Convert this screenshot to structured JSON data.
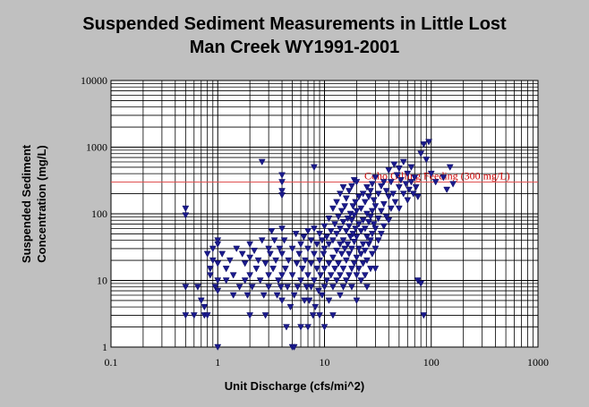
{
  "chart_data": {
    "type": "scatter",
    "title_line1": "Suspended Sediment Measurements in Little Lost",
    "title_line2": "Man Creek WY1991-2001",
    "xlabel": "Unit Discharge (cfs/mi^2)",
    "ylabel_line1": "Suspended Sediment",
    "ylabel_line2": "Concentration (mg/L)",
    "x_scale": "log",
    "y_scale": "log",
    "xlim": [
      0.1,
      1000
    ],
    "ylim": [
      1,
      10000
    ],
    "x_ticks": [
      "0.1",
      "1",
      "10",
      "100",
      "1000"
    ],
    "y_ticks": [
      "1",
      "10",
      "100",
      "1000",
      "10000"
    ],
    "grid": true,
    "marker": "triangle-down",
    "marker_color": "#1a1a8c",
    "threshold": {
      "value": 300,
      "label": "Coho Gilling Feeding (300 mg/L)",
      "color": "#e05050"
    },
    "points": [
      [
        0.5,
        120
      ],
      [
        0.5,
        95
      ],
      [
        0.5,
        8
      ],
      [
        0.5,
        3
      ],
      [
        0.6,
        3
      ],
      [
        0.65,
        8
      ],
      [
        0.7,
        5
      ],
      [
        0.75,
        3
      ],
      [
        0.75,
        4
      ],
      [
        0.8,
        3
      ],
      [
        0.8,
        25
      ],
      [
        0.85,
        12
      ],
      [
        0.85,
        15
      ],
      [
        0.9,
        30
      ],
      [
        0.9,
        20
      ],
      [
        0.95,
        8
      ],
      [
        1,
        40
      ],
      [
        1,
        35
      ],
      [
        1,
        18
      ],
      [
        1,
        10
      ],
      [
        1,
        7
      ],
      [
        1,
        1
      ],
      [
        1.1,
        25
      ],
      [
        1.2,
        15
      ],
      [
        1.2,
        10
      ],
      [
        1.3,
        20
      ],
      [
        1.4,
        6
      ],
      [
        1.4,
        12
      ],
      [
        1.5,
        30
      ],
      [
        1.6,
        8
      ],
      [
        1.7,
        25
      ],
      [
        1.8,
        18
      ],
      [
        1.8,
        10
      ],
      [
        1.9,
        6
      ],
      [
        2,
        35
      ],
      [
        2,
        22
      ],
      [
        2,
        12
      ],
      [
        2,
        3
      ],
      [
        2.1,
        8
      ],
      [
        2.2,
        28
      ],
      [
        2.3,
        15
      ],
      [
        2.4,
        20
      ],
      [
        2.5,
        10
      ],
      [
        2.6,
        40
      ],
      [
        2.6,
        600
      ],
      [
        2.7,
        6
      ],
      [
        2.8,
        3
      ],
      [
        2.8,
        18
      ],
      [
        3,
        30
      ],
      [
        3,
        12
      ],
      [
        3,
        8
      ],
      [
        3.1,
        25
      ],
      [
        3.2,
        55
      ],
      [
        3.3,
        15
      ],
      [
        3.4,
        40
      ],
      [
        3.5,
        20
      ],
      [
        3.6,
        6
      ],
      [
        3.7,
        10
      ],
      [
        3.8,
        30
      ],
      [
        3.9,
        8
      ],
      [
        4,
        380
      ],
      [
        4,
        300
      ],
      [
        4,
        220
      ],
      [
        4,
        190
      ],
      [
        4,
        60
      ],
      [
        4,
        25
      ],
      [
        4,
        12
      ],
      [
        4,
        5
      ],
      [
        4.2,
        40
      ],
      [
        4.3,
        15
      ],
      [
        4.4,
        2
      ],
      [
        4.5,
        8
      ],
      [
        4.6,
        20
      ],
      [
        4.8,
        4
      ],
      [
        5,
        1
      ],
      [
        5,
        30
      ],
      [
        5,
        12
      ],
      [
        5.2,
        1
      ],
      [
        5.2,
        6
      ],
      [
        5.4,
        50
      ],
      [
        5.5,
        18
      ],
      [
        5.6,
        8
      ],
      [
        5.8,
        25
      ],
      [
        6,
        2
      ],
      [
        6,
        35
      ],
      [
        6,
        10
      ],
      [
        6.2,
        15
      ],
      [
        6.4,
        45
      ],
      [
        6.5,
        5
      ],
      [
        6.6,
        20
      ],
      [
        6.8,
        8
      ],
      [
        7,
        55
      ],
      [
        7,
        30
      ],
      [
        7,
        12
      ],
      [
        7,
        2
      ],
      [
        7.2,
        5
      ],
      [
        7.5,
        40
      ],
      [
        7.5,
        18
      ],
      [
        7.5,
        8
      ],
      [
        7.8,
        3
      ],
      [
        8,
        500
      ],
      [
        8,
        60
      ],
      [
        8,
        25
      ],
      [
        8,
        10
      ],
      [
        8.2,
        4
      ],
      [
        8.5,
        35
      ],
      [
        8.5,
        15
      ],
      [
        8.8,
        7
      ],
      [
        9,
        50
      ],
      [
        9,
        20
      ],
      [
        9,
        3
      ],
      [
        9.2,
        12
      ],
      [
        9.5,
        40
      ],
      [
        9.5,
        6
      ],
      [
        9.8,
        25
      ],
      [
        10,
        65
      ],
      [
        10,
        30
      ],
      [
        10,
        15
      ],
      [
        10,
        8
      ],
      [
        10,
        2
      ],
      [
        10.5,
        45
      ],
      [
        10.5,
        10
      ],
      [
        11,
        85
      ],
      [
        11,
        35
      ],
      [
        11,
        18
      ],
      [
        11,
        5
      ],
      [
        11.5,
        55
      ],
      [
        11.5,
        12
      ],
      [
        12,
        120
      ],
      [
        12,
        40
      ],
      [
        12,
        22
      ],
      [
        12,
        8
      ],
      [
        12,
        3
      ],
      [
        12.5,
        70
      ],
      [
        12.5,
        15
      ],
      [
        13,
        150
      ],
      [
        13,
        50
      ],
      [
        13,
        28
      ],
      [
        13,
        10
      ],
      [
        13.5,
        90
      ],
      [
        13.5,
        18
      ],
      [
        14,
        200
      ],
      [
        14,
        60
      ],
      [
        14,
        35
      ],
      [
        14,
        12
      ],
      [
        14,
        6
      ],
      [
        14.5,
        110
      ],
      [
        14.5,
        25
      ],
      [
        15,
        250
      ],
      [
        15,
        75
      ],
      [
        15,
        40
      ],
      [
        15,
        15
      ],
      [
        15,
        8
      ],
      [
        15.5,
        130
      ],
      [
        15.5,
        30
      ],
      [
        16,
        170
      ],
      [
        16,
        55
      ],
      [
        16,
        20
      ],
      [
        16,
        10
      ],
      [
        16.5,
        85
      ],
      [
        16.5,
        35
      ],
      [
        17,
        220
      ],
      [
        17,
        65
      ],
      [
        17,
        25
      ],
      [
        17,
        12
      ],
      [
        17.5,
        100
      ],
      [
        17.5,
        45
      ],
      [
        18,
        260
      ],
      [
        18,
        80
      ],
      [
        18,
        30
      ],
      [
        18,
        15
      ],
      [
        18,
        8
      ],
      [
        18.5,
        130
      ],
      [
        18.5,
        50
      ],
      [
        19,
        320
      ],
      [
        19,
        95
      ],
      [
        19,
        38
      ],
      [
        19,
        18
      ],
      [
        19.5,
        150
      ],
      [
        19.5,
        60
      ],
      [
        20,
        300
      ],
      [
        20,
        110
      ],
      [
        20,
        45
      ],
      [
        20,
        22
      ],
      [
        20,
        12
      ],
      [
        20,
        5
      ],
      [
        21,
        180
      ],
      [
        21,
        70
      ],
      [
        21,
        30
      ],
      [
        21,
        15
      ],
      [
        22,
        120
      ],
      [
        22,
        55
      ],
      [
        22,
        25
      ],
      [
        22,
        10
      ],
      [
        23,
        200
      ],
      [
        23,
        80
      ],
      [
        23,
        35
      ],
      [
        23,
        18
      ],
      [
        24,
        150
      ],
      [
        24,
        60
      ],
      [
        24,
        28
      ],
      [
        24,
        12
      ],
      [
        25,
        250
      ],
      [
        25,
        100
      ],
      [
        25,
        45
      ],
      [
        25,
        20
      ],
      [
        25,
        8
      ],
      [
        26,
        180
      ],
      [
        26,
        75
      ],
      [
        26,
        35
      ],
      [
        27,
        220
      ],
      [
        27,
        90
      ],
      [
        27,
        40
      ],
      [
        27,
        15
      ],
      [
        28,
        280
      ],
      [
        28,
        110
      ],
      [
        28,
        50
      ],
      [
        28,
        25
      ],
      [
        29,
        160
      ],
      [
        29,
        70
      ],
      [
        30,
        350
      ],
      [
        30,
        130
      ],
      [
        30,
        60
      ],
      [
        30,
        30
      ],
      [
        30,
        15
      ],
      [
        32,
        200
      ],
      [
        32,
        85
      ],
      [
        32,
        40
      ],
      [
        34,
        260
      ],
      [
        34,
        110
      ],
      [
        34,
        50
      ],
      [
        36,
        300
      ],
      [
        36,
        140
      ],
      [
        36,
        65
      ],
      [
        38,
        220
      ],
      [
        38,
        90
      ],
      [
        40,
        450
      ],
      [
        40,
        180
      ],
      [
        40,
        80
      ],
      [
        42,
        300
      ],
      [
        42,
        120
      ],
      [
        44,
        200
      ],
      [
        45,
        550
      ],
      [
        46,
        150
      ],
      [
        48,
        380
      ],
      [
        50,
        480
      ],
      [
        50,
        250
      ],
      [
        50,
        120
      ],
      [
        52,
        320
      ],
      [
        55,
        200
      ],
      [
        55,
        600
      ],
      [
        58,
        280
      ],
      [
        60,
        400
      ],
      [
        60,
        160
      ],
      [
        62,
        230
      ],
      [
        65,
        500
      ],
      [
        65,
        300
      ],
      [
        68,
        200
      ],
      [
        70,
        350
      ],
      [
        72,
        250
      ],
      [
        75,
        10
      ],
      [
        75,
        180
      ],
      [
        80,
        800
      ],
      [
        80,
        9
      ],
      [
        85,
        1100
      ],
      [
        85,
        3
      ],
      [
        90,
        650
      ],
      [
        95,
        1200
      ],
      [
        100,
        400
      ],
      [
        110,
        300
      ],
      [
        130,
        350
      ],
      [
        140,
        230
      ],
      [
        150,
        500
      ],
      [
        160,
        280
      ]
    ]
  }
}
